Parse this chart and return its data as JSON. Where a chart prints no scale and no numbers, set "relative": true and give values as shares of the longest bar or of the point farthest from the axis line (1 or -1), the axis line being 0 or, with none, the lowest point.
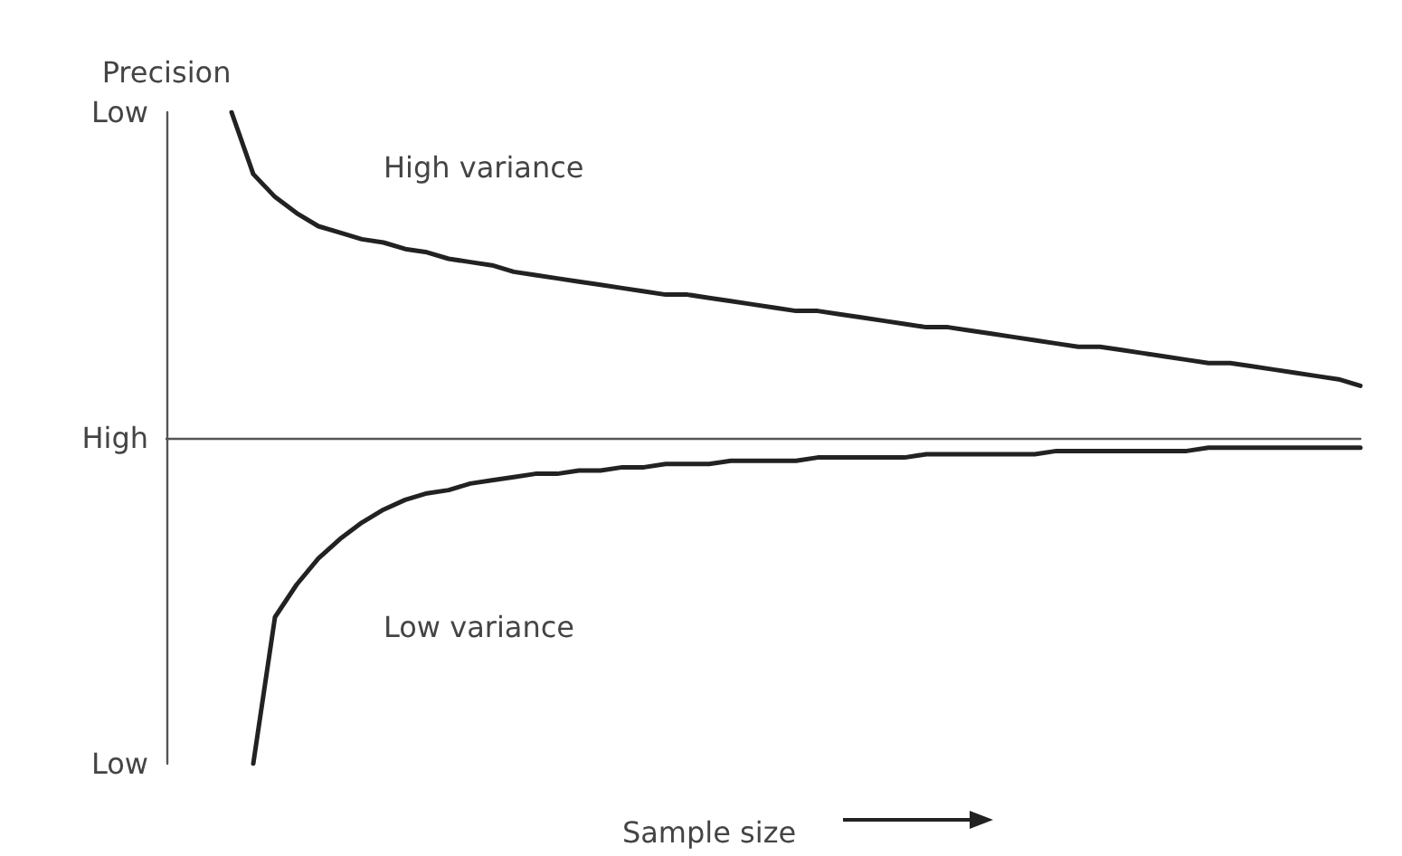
{
  "chart_data": {
    "type": "line",
    "ylabel": "Precision",
    "xlabel": "Sample size",
    "categories": [
      null,
      null,
      null,
      null,
      null,
      null,
      null,
      null,
      null,
      null,
      null,
      null,
      null,
      null,
      null,
      null,
      null,
      null,
      null,
      null,
      null,
      null,
      null,
      null,
      null,
      null,
      null,
      null,
      null,
      null,
      null,
      null,
      null,
      null,
      null,
      null,
      null,
      null,
      null,
      null,
      null,
      null,
      null,
      null,
      null,
      null,
      null,
      null,
      null,
      null,
      null,
      null,
      null,
      null,
      null,
      null
    ],
    "series": [
      {
        "name": "High variance",
        "color": "#222222",
        "values": [
          null,
          null,
          null,
          1.0,
          0.81,
          0.74,
          0.69,
          0.65,
          0.63,
          0.61,
          0.6,
          0.58,
          0.57,
          0.55,
          0.54,
          0.53,
          0.51,
          0.5,
          0.49,
          0.48,
          0.47,
          0.46,
          0.45,
          0.44,
          0.44,
          0.43,
          0.42,
          0.41,
          0.4,
          0.39,
          0.39,
          0.38,
          0.37,
          0.36,
          0.35,
          0.34,
          0.34,
          0.33,
          0.32,
          0.31,
          0.3,
          0.29,
          0.28,
          0.28,
          0.27,
          0.26,
          0.25,
          0.24,
          0.23,
          0.23,
          0.22,
          0.21,
          0.2,
          0.19,
          0.18,
          0.16
        ]
      },
      {
        "name": "Low variance",
        "color": "#222222",
        "values": [
          null,
          null,
          null,
          null,
          -1.0,
          -0.55,
          -0.45,
          -0.37,
          -0.31,
          -0.26,
          -0.22,
          -0.19,
          -0.17,
          -0.16,
          -0.14,
          -0.13,
          -0.12,
          -0.11,
          -0.11,
          -0.1,
          -0.1,
          -0.09,
          -0.09,
          -0.08,
          -0.08,
          -0.08,
          -0.07,
          -0.07,
          -0.07,
          -0.07,
          -0.06,
          -0.06,
          -0.06,
          -0.06,
          -0.06,
          -0.05,
          -0.05,
          -0.05,
          -0.05,
          -0.05,
          -0.05,
          -0.04,
          -0.04,
          -0.04,
          -0.04,
          -0.04,
          -0.04,
          -0.04,
          -0.03,
          -0.03,
          -0.03,
          -0.03,
          -0.03,
          -0.03,
          -0.03,
          -0.03
        ]
      }
    ],
    "relative": true,
    "annotations": [
      "Low",
      "High",
      "Low"
    ],
    "grid": false,
    "legend": false,
    "marker": "none",
    "line_style": "solid"
  }
}
